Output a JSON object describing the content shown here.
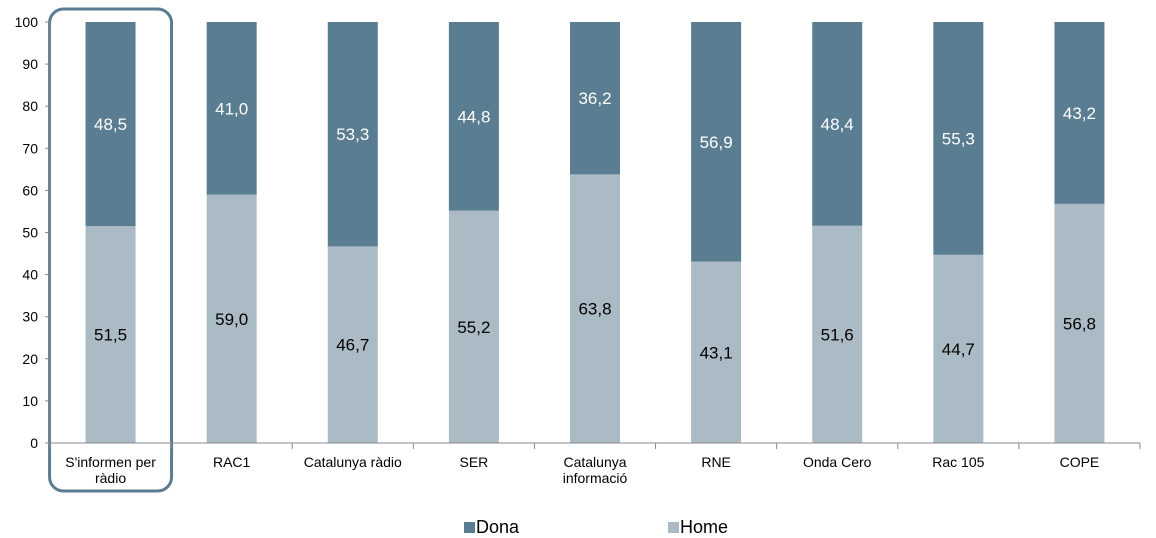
{
  "chart_data": {
    "type": "bar",
    "stacked": true,
    "categories": [
      "S'informen per ràdio",
      "RAC1",
      "Catalunya ràdio",
      "SER",
      "Catalunya informació",
      "RNE",
      "Onda Cero",
      "Rac 105",
      "COPE"
    ],
    "category_lines": [
      [
        "S'informen per",
        "ràdio"
      ],
      [
        "RAC1"
      ],
      [
        "Catalunya ràdio"
      ],
      [
        "SER"
      ],
      [
        "Catalunya",
        "informació"
      ],
      [
        "RNE"
      ],
      [
        "Onda Cero"
      ],
      [
        "Rac 105"
      ],
      [
        "COPE"
      ]
    ],
    "series": [
      {
        "name": "Home",
        "color": "#abbbc6",
        "label_color": "#000000",
        "values": [
          51.5,
          59.0,
          46.7,
          55.2,
          63.8,
          43.1,
          51.6,
          44.7,
          56.8
        ],
        "labels": [
          "51,5",
          "59,0",
          "46,7",
          "55,2",
          "63,8",
          "43,1",
          "51,6",
          "44,7",
          "56,8"
        ]
      },
      {
        "name": "Dona",
        "color": "#5b7d91",
        "label_color": "#ffffff",
        "values": [
          48.5,
          41.0,
          53.3,
          44.8,
          36.2,
          56.9,
          48.4,
          55.3,
          43.2
        ],
        "labels": [
          "48,5",
          "41,0",
          "53,3",
          "44,8",
          "36,2",
          "56,9",
          "48,4",
          "55,3",
          "43,2"
        ]
      }
    ],
    "legend": [
      "Dona",
      "Home"
    ],
    "legend_position": "bottom",
    "ylim": [
      0,
      100
    ],
    "yticks": [
      "0",
      "10",
      "20",
      "30",
      "40",
      "50",
      "60",
      "70",
      "80",
      "90",
      "100"
    ],
    "highlight_category": "S'informen per ràdio",
    "highlight_color": "#5b7d91",
    "grid": false
  }
}
